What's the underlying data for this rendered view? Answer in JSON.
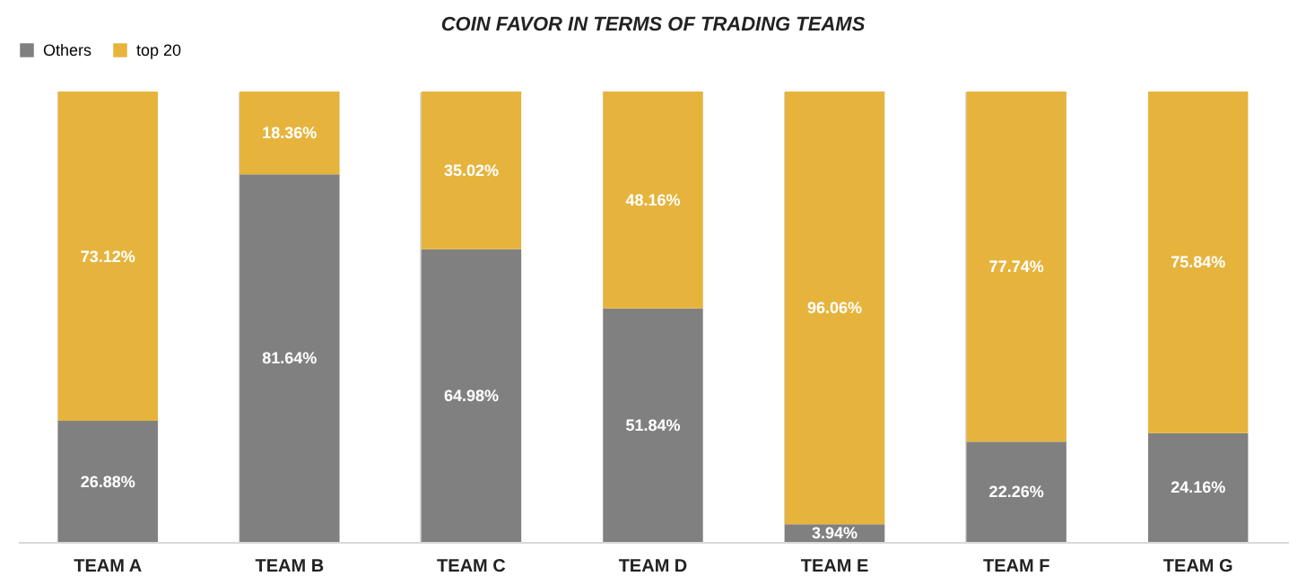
{
  "chart_data": {
    "type": "bar",
    "title": "COIN FAVOR IN TERMS OF TRADING TEAMS",
    "categories": [
      "TEAM A",
      "TEAM B",
      "TEAM C",
      "TEAM D",
      "TEAM E",
      "TEAM F",
      "TEAM G"
    ],
    "series": [
      {
        "name": "Others",
        "color": "#808080",
        "values": [
          26.88,
          81.64,
          64.98,
          51.84,
          3.94,
          22.26,
          24.16
        ],
        "value_labels": [
          "26.88%",
          "81.64%",
          "64.98%",
          "51.84%",
          "3.94%",
          "22.26%",
          "24.16%"
        ]
      },
      {
        "name": "top 20",
        "color": "#e6b43c",
        "values": [
          73.12,
          18.36,
          35.02,
          48.16,
          96.06,
          77.74,
          75.84
        ],
        "value_labels": [
          "73.12%",
          "18.36%",
          "35.02%",
          "48.16%",
          "96.06%",
          "77.74%",
          "75.84%"
        ]
      }
    ],
    "stacked": true,
    "tick_labels": "x",
    "grid": "x",
    "legend": "top"
  }
}
